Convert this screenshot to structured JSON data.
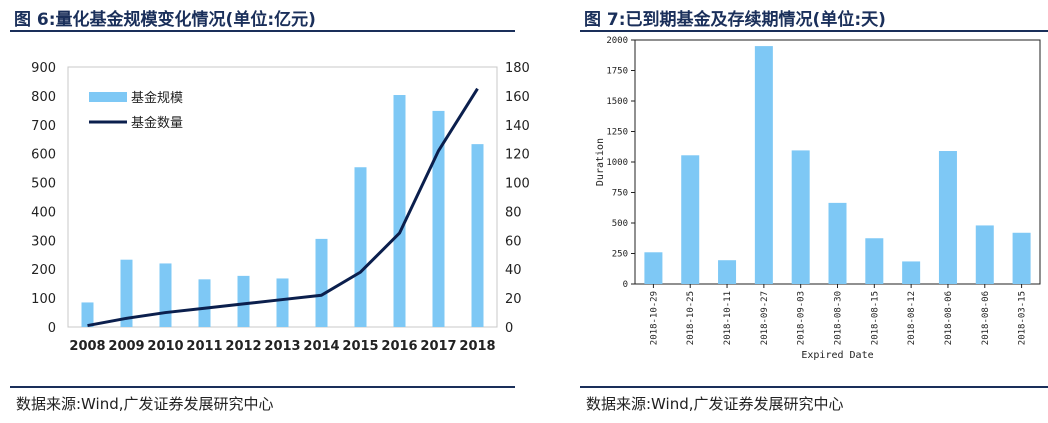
{
  "left": {
    "title": "图 6:量化基金规模变化情况(单位:亿元)",
    "source": "数据来源:Wind,广发证券发展研究中心",
    "chart_data": {
      "type": "bar+line",
      "categories": [
        "2008",
        "2009",
        "2010",
        "2011",
        "2012",
        "2013",
        "2014",
        "2015",
        "2016",
        "2017",
        "2018"
      ],
      "series": [
        {
          "name": "基金规模",
          "type": "bar",
          "axis": "left",
          "color": "#7ec8f5",
          "values": [
            85,
            233,
            220,
            165,
            177,
            168,
            305,
            553,
            803,
            748,
            633
          ]
        },
        {
          "name": "基金数量",
          "type": "line",
          "axis": "right",
          "color": "#0b1f4d",
          "values": [
            1,
            6,
            10,
            13,
            16,
            19,
            22,
            38,
            65,
            122,
            165
          ]
        }
      ],
      "y_left": {
        "range": [
          0,
          900
        ],
        "ticks": [
          0,
          100,
          200,
          300,
          400,
          500,
          600,
          700,
          800,
          900
        ]
      },
      "y_right": {
        "range": [
          0,
          180
        ],
        "ticks": [
          0,
          20,
          40,
          60,
          80,
          100,
          120,
          140,
          160,
          180
        ]
      },
      "legend": "top-left",
      "grid": false
    }
  },
  "right": {
    "title": "图 7:已到期基金及存续期情况(单位:天)",
    "source": "数据来源:Wind,广发证券发展研究中心",
    "chart_data": {
      "type": "bar",
      "categories": [
        "2018-10-29",
        "2018-10-25",
        "2018-10-11",
        "2018-09-27",
        "2018-09-03",
        "2018-08-30",
        "2018-08-15",
        "2018-08-12",
        "2018-08-06",
        "2018-08-06",
        "2018-03-15"
      ],
      "values": [
        260,
        1055,
        195,
        1950,
        1095,
        665,
        375,
        185,
        1090,
        480,
        420
      ],
      "color": "#7ec8f5",
      "xlabel": "Expired Date",
      "ylabel": "Duration",
      "ylim": [
        0,
        2000
      ],
      "yticks": [
        0,
        250,
        500,
        750,
        1000,
        1250,
        1500,
        1750,
        2000
      ],
      "grid": false
    }
  }
}
